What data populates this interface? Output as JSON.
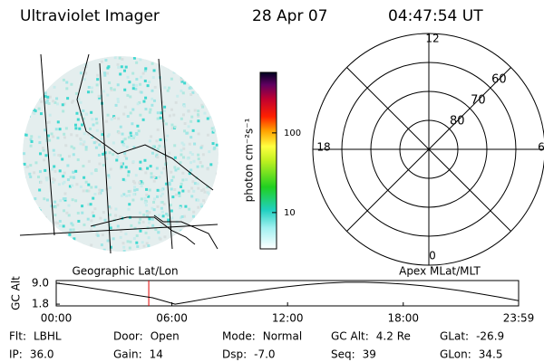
{
  "header": {
    "title": "Ultraviolet Imager",
    "date": "28 Apr 07",
    "time": "04:47:54 UT"
  },
  "image": {
    "label": "Geographic Lat/Lon"
  },
  "colorbar": {
    "label": "photon cm⁻²s⁻¹",
    "log_scale": true,
    "lim": [
      3.5,
      575
    ],
    "ticks": [
      10,
      100
    ]
  },
  "polar": {
    "label": "Apex MLat/MLT",
    "lat_lim": [
      90,
      50
    ],
    "lat_ticks": [
      60,
      70,
      80
    ],
    "mlt_ticks": [
      0,
      6,
      12,
      18
    ]
  },
  "altitude_plot": {
    "y_label": "GC Alt",
    "ylim": [
      1.2,
      9.9
    ],
    "yticks": [
      1.8,
      {
        "value": 9,
        "label": "9.0"
      }
    ],
    "xlim": [
      0,
      1439
    ],
    "xticks": [
      {
        "value": 0,
        "label": "00:00"
      },
      {
        "value": 360,
        "label": "06:00"
      },
      {
        "value": 720,
        "label": "12:00"
      },
      {
        "value": 1080,
        "label": "18:00"
      },
      {
        "value": 1439,
        "label": "23:59"
      }
    ],
    "x": [
      0,
      60,
      120,
      180,
      240,
      300,
      370,
      420,
      480,
      540,
      600,
      660,
      720,
      780,
      840,
      900,
      960,
      1020,
      1080,
      1140,
      1200,
      1260,
      1320,
      1380,
      1439
    ],
    "values": [
      9.0,
      8.2,
      7.1,
      6.1,
      5.0,
      4.0,
      1.8,
      2.7,
      3.9,
      5.0,
      6.0,
      7.0,
      7.8,
      8.5,
      9.0,
      9.3,
      9.3,
      9.1,
      8.7,
      8.1,
      7.3,
      6.4,
      5.3,
      4.2,
      3.0
    ],
    "marker_time": 288,
    "marker_color": "#e00000"
  },
  "status": [
    [
      [
        "Flt:",
        "LBHL"
      ],
      [
        "Door:",
        "Open"
      ],
      [
        "Mode:",
        "Normal"
      ],
      [
        "GC Alt:",
        "4.2 Re"
      ],
      [
        "GLat:",
        "-26.9"
      ]
    ],
    [
      [
        "IP:",
        "36.0"
      ],
      [
        "Gain:",
        "14"
      ],
      [
        "Dsp:",
        "-7.0"
      ],
      [
        "Seq:",
        "39"
      ],
      [
        "GLon:",
        "34.5"
      ]
    ]
  ]
}
